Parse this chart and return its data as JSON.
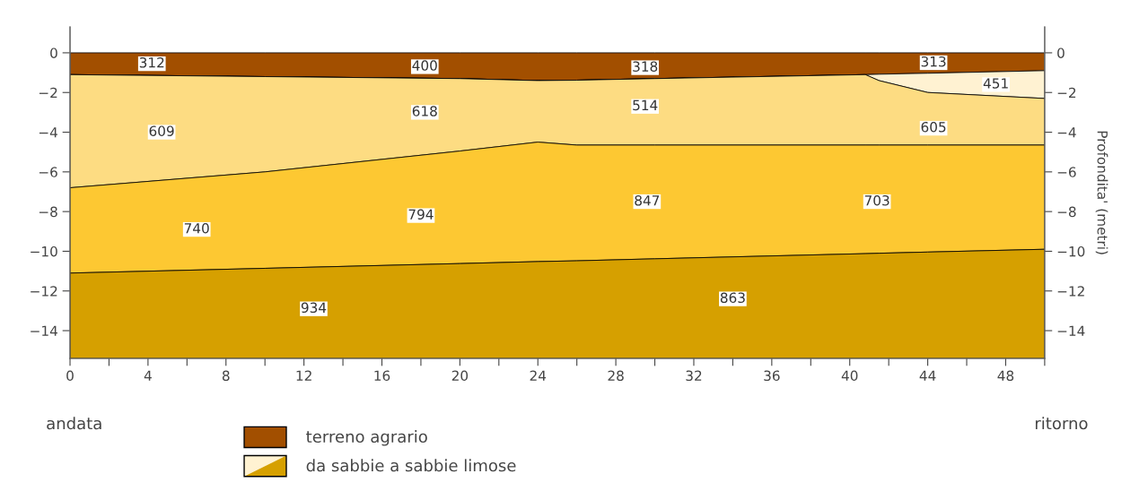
{
  "chart_data": {
    "type": "area",
    "ylabel": null,
    "y2label": "Profondita' (metri)",
    "x": [
      0,
      10,
      20,
      24,
      26,
      30,
      40.8,
      41.5,
      44,
      50
    ],
    "series": [
      {
        "name": "terreno agrario",
        "color": "#a24f00",
        "values": [
          -1.1,
          -1.2,
          -1.3,
          -1.4,
          -1.38,
          -1.3,
          -1.1,
          -1.08,
          -1.03,
          -0.9
        ]
      },
      {
        "name": "da sabbie a sabbie limose",
        "color": "#fff2d2",
        "values": [
          0,
          0,
          0,
          0,
          0,
          0,
          0,
          -0.32,
          -0.97,
          -1.4
        ]
      },
      {
        "color": "#fddc82",
        "values": [
          -5.7,
          -4.8,
          -3.65,
          -3.1,
          -3.27,
          -3.35,
          -3.55,
          -3.25,
          -2.65,
          -2.35
        ]
      },
      {
        "color": "#fdc832",
        "values": [
          -4.3,
          -4.86,
          -5.67,
          -6.02,
          -5.83,
          -5.73,
          -5.47,
          -5.45,
          -5.39,
          -5.25
        ]
      },
      {
        "color": "#d6a000",
        "values": [
          -4.3,
          -4.54,
          -4.78,
          -4.88,
          -4.92,
          -5.02,
          -5.28,
          -5.3,
          -5.36,
          -5.5
        ]
      }
    ],
    "stacked": true,
    "xlim": [
      0,
      50
    ],
    "xticks": [
      0,
      {
        "value": 2,
        "label": null
      },
      4,
      {
        "value": 6,
        "label": null
      },
      8,
      {
        "value": 10,
        "label": null
      },
      12,
      {
        "value": 14,
        "label": null
      },
      16,
      {
        "value": 18,
        "label": null
      },
      20,
      {
        "value": 22,
        "label": null
      },
      24,
      {
        "value": 26,
        "label": null
      },
      28,
      {
        "value": 30,
        "label": null
      },
      32,
      {
        "value": 34,
        "label": null
      },
      36,
      {
        "value": 38,
        "label": null
      },
      40,
      {
        "value": 42,
        "label": null
      },
      44,
      {
        "value": 46,
        "label": null
      },
      48,
      {
        "value": 50,
        "label": null
      }
    ],
    "ylim": [
      -15.4,
      1.3
    ],
    "yticks": [
      {
        "value": 0,
        "label": "0"
      },
      {
        "value": -2,
        "label": "−2"
      },
      {
        "value": -4,
        "label": "−4"
      },
      {
        "value": -6,
        "label": "−6"
      },
      {
        "value": -8,
        "label": "−8"
      },
      {
        "value": -10,
        "label": "−10"
      },
      {
        "value": -12,
        "label": "−12"
      },
      {
        "value": -14,
        "label": "−14"
      }
    ],
    "y2lim": [
      -15.4,
      1.3
    ],
    "y2ticks": [
      {
        "value": 0,
        "label": "0"
      },
      {
        "value": -2,
        "label": "−2"
      },
      {
        "value": -4,
        "label": "−4"
      },
      {
        "value": -6,
        "label": "−6"
      },
      {
        "value": -8,
        "label": "−8"
      },
      {
        "value": -10,
        "label": "−10"
      },
      {
        "value": -12,
        "label": "−12"
      },
      {
        "value": -14,
        "label": "−14"
      }
    ],
    "annotations": [
      {
        "text": "312",
        "x": 4.2,
        "y": -0.55
      },
      {
        "text": "400",
        "x": 18.2,
        "y": -0.7
      },
      {
        "text": "318",
        "x": 29.5,
        "y": -0.75
      },
      {
        "text": "313",
        "x": 44.3,
        "y": -0.5
      },
      {
        "text": "451",
        "x": 47.5,
        "y": -1.6
      },
      {
        "text": "609",
        "x": 4.7,
        "y": -4.0
      },
      {
        "text": "618",
        "x": 18.2,
        "y": -3.0
      },
      {
        "text": "514",
        "x": 29.5,
        "y": -2.7
      },
      {
        "text": "605",
        "x": 44.3,
        "y": -3.8
      },
      {
        "text": "740",
        "x": 6.5,
        "y": -8.9
      },
      {
        "text": "794",
        "x": 18.0,
        "y": -8.2
      },
      {
        "text": "847",
        "x": 29.6,
        "y": -7.5
      },
      {
        "text": "703",
        "x": 41.4,
        "y": -7.5
      },
      {
        "text": "934",
        "x": 12.5,
        "y": -12.9
      },
      {
        "text": "863",
        "x": 34.0,
        "y": -12.4
      },
      "andata",
      "ritorno"
    ],
    "legend": "bottom",
    "grid": false
  }
}
